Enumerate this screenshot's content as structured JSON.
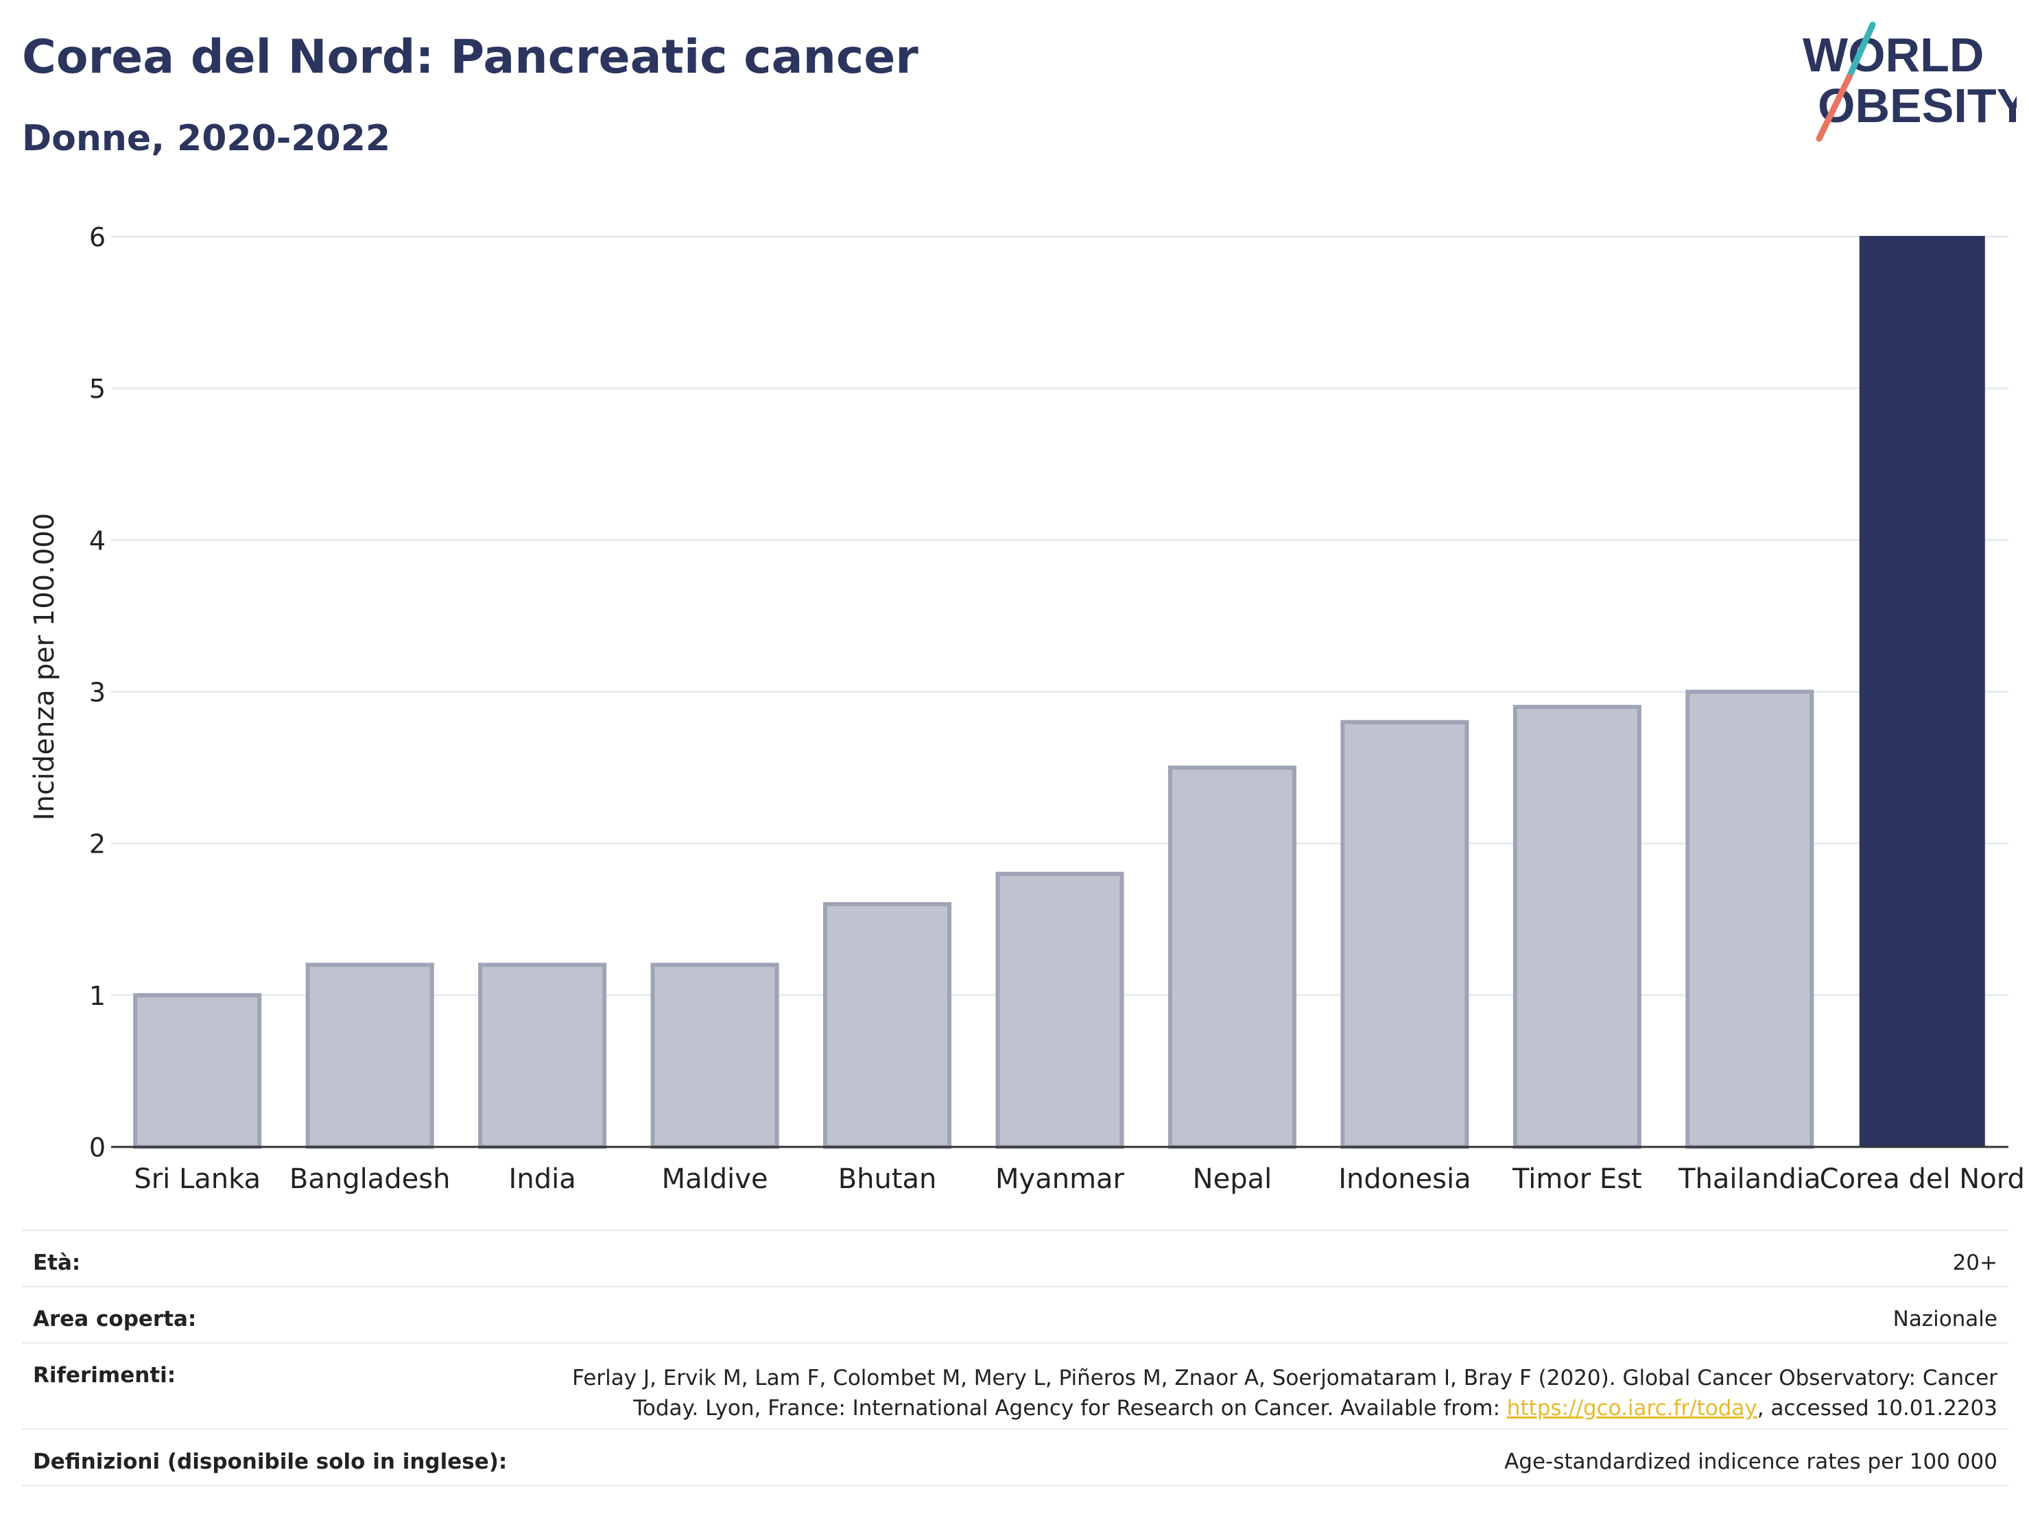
{
  "header": {
    "title": "Corea del Nord: Pancreatic cancer",
    "subtitle": "Donne, 2020-2022"
  },
  "logo": {
    "line1": "WORLD",
    "line2": "OBESITY",
    "accent_teal": "#3bb3b8",
    "accent_coral": "#e87461",
    "brand_color": "#2b355e"
  },
  "chart_data": {
    "type": "bar",
    "categories": [
      "Sri Lanka",
      "Bangladesh",
      "India",
      "Maldive",
      "Bhutan",
      "Myanmar",
      "Nepal",
      "Indonesia",
      "Timor Est",
      "Thailandia",
      "Corea del Nord"
    ],
    "values": [
      1.0,
      1.2,
      1.2,
      1.2,
      1.6,
      1.8,
      2.5,
      2.8,
      2.9,
      3.0,
      6.0
    ],
    "highlight": "Corea del Nord",
    "ylabel": "Incidenza per 100.000",
    "ylim": [
      0,
      6
    ],
    "yticks": [
      0,
      1,
      2,
      3,
      4,
      5,
      6
    ],
    "grid": true,
    "colors": {
      "highlight": "#2b355e",
      "other_fill": "#bfc3cf",
      "other_stroke": "#9ea3b6"
    }
  },
  "meta": {
    "age_label": "Età:",
    "age_value": "20+",
    "area_label": "Area coperta:",
    "area_value": "Nazionale",
    "refs_label": "Riferimenti:",
    "refs_line1": "Ferlay J, Ervik M, Lam F, Colombet M, Mery L, Piñeros M, Znaor A, Soerjomataram I, Bray F (2020). Global Cancer Observatory: Cancer",
    "refs_line2_pre": "Today. Lyon, France: International Agency for Research on Cancer. Available from: ",
    "refs_link": "https://gco.iarc.fr/today",
    "refs_line2_post": ", accessed 10.01.2203",
    "defs_label": "Definizioni (disponibile solo in inglese):",
    "defs_value": "Age-standardized indicence rates per 100 000"
  }
}
